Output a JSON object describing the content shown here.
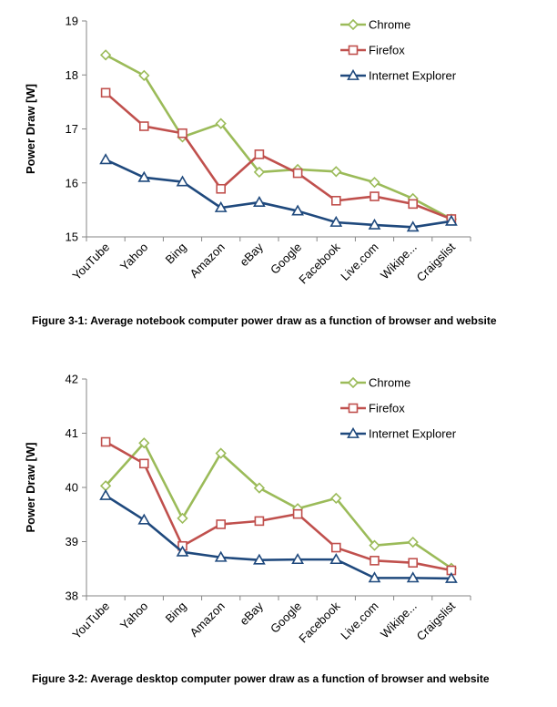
{
  "chart_data": [
    {
      "type": "line",
      "categories": [
        "YouTube",
        "Yahoo",
        "Bing",
        "Amazon",
        "eBay",
        "Google",
        "Facebook",
        "Live.com",
        "Wikipe...",
        "Craigslist"
      ],
      "ylabel": "Power Draw [W]",
      "ylim": [
        15,
        19
      ],
      "yticks": [
        15,
        16,
        17,
        18,
        19
      ],
      "grid": false,
      "legend_position": "top-right",
      "caption": "Figure 3-1: Average notebook computer power draw as a function of browser and website",
      "series": [
        {
          "name": "Chrome",
          "color": "#9bbb59",
          "marker": "diamond",
          "values": [
            18.37,
            17.99,
            16.85,
            17.1,
            16.2,
            16.25,
            16.21,
            16.01,
            15.71,
            15.33
          ]
        },
        {
          "name": "Firefox",
          "color": "#c0504d",
          "marker": "square",
          "values": [
            17.67,
            17.05,
            16.92,
            15.89,
            16.53,
            16.18,
            15.67,
            15.75,
            15.61,
            15.33
          ]
        },
        {
          "name": "Internet Explorer",
          "color": "#1f497d",
          "marker": "triangle",
          "values": [
            16.43,
            16.1,
            16.02,
            15.54,
            15.64,
            15.48,
            15.27,
            15.22,
            15.18,
            15.29
          ]
        }
      ]
    },
    {
      "type": "line",
      "categories": [
        "YouTube",
        "Yahoo",
        "Bing",
        "Amazon",
        "eBay",
        "Google",
        "Facebook",
        "Live.com",
        "Wikipe...",
        "Craigslist"
      ],
      "ylabel": "Power Draw [W]",
      "ylim": [
        38,
        42
      ],
      "yticks": [
        38,
        39,
        40,
        41,
        42
      ],
      "grid": false,
      "legend_position": "top-right",
      "caption": "Figure 3-2: Average desktop computer power draw as a function of browser and website",
      "series": [
        {
          "name": "Chrome",
          "color": "#9bbb59",
          "marker": "diamond",
          "values": [
            40.03,
            40.82,
            39.43,
            40.63,
            39.99,
            39.61,
            39.8,
            38.93,
            38.99,
            38.51
          ]
        },
        {
          "name": "Firefox",
          "color": "#c0504d",
          "marker": "square",
          "values": [
            40.84,
            40.44,
            38.92,
            39.32,
            39.38,
            39.51,
            38.89,
            38.65,
            38.61,
            38.47
          ]
        },
        {
          "name": "Internet Explorer",
          "color": "#1f497d",
          "marker": "triangle",
          "values": [
            39.85,
            39.4,
            38.81,
            38.71,
            38.66,
            38.67,
            38.67,
            38.33,
            38.33,
            38.32
          ]
        }
      ]
    }
  ]
}
